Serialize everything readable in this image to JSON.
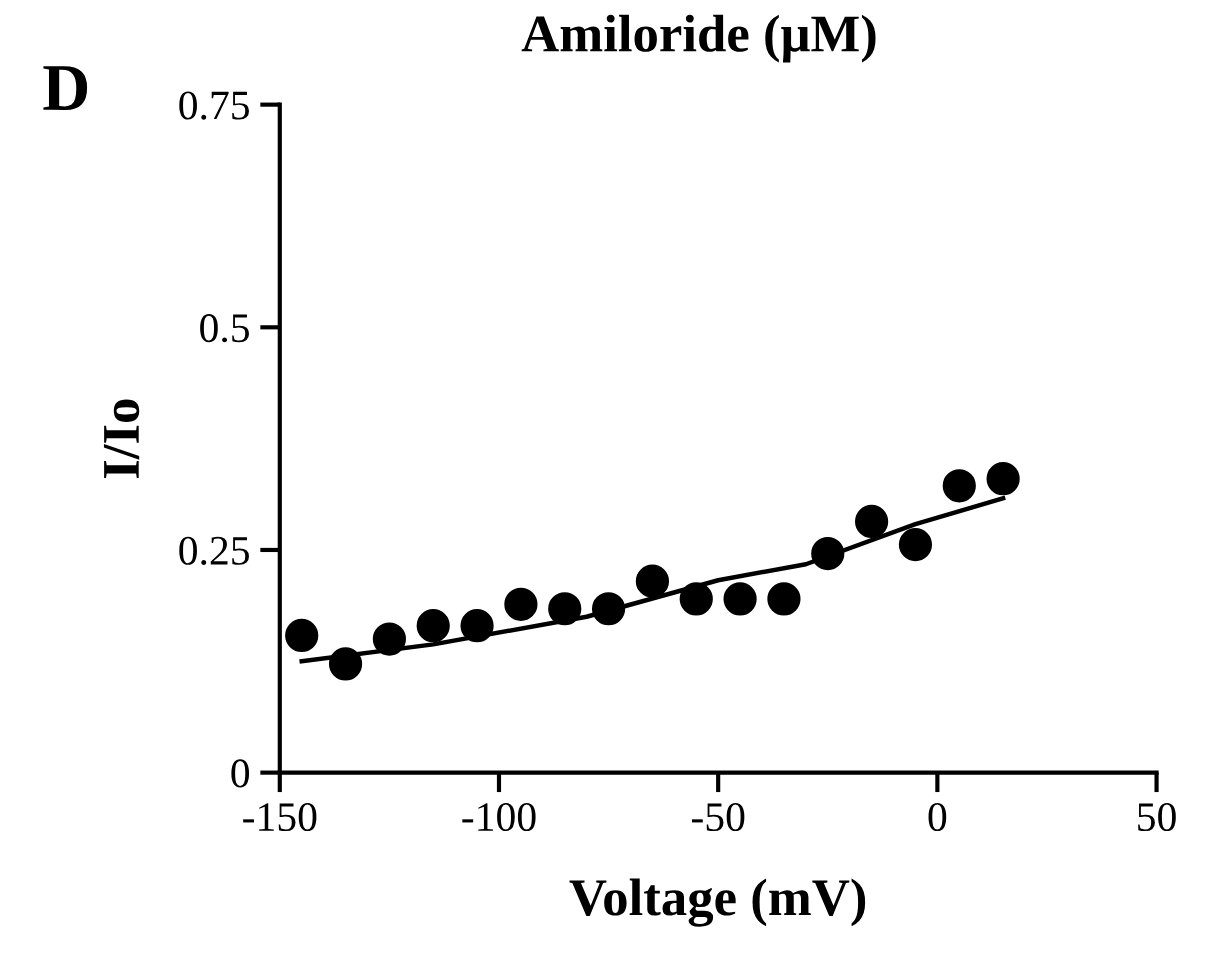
{
  "chart_data": {
    "type": "scatter",
    "title": "Amiloride (μM)",
    "xlabel": "Voltage (mV)",
    "ylabel": "I/Io",
    "annotations": [
      "D"
    ],
    "xlim": [
      -150,
      50
    ],
    "xticks": [
      -150,
      -100,
      -50,
      0,
      50
    ],
    "ylim": [
      0,
      0.75
    ],
    "yticks": [
      0,
      0.25,
      0.5,
      0.75
    ],
    "grid": false,
    "legend": false,
    "x": [
      -145,
      -135,
      -125,
      -115,
      -105,
      -95,
      -85,
      -75,
      -65,
      -55,
      -45,
      -35,
      -25,
      -15,
      -5,
      5,
      15
    ],
    "series": [
      {
        "type": "scatter",
        "marker": "circle",
        "color": "#000000",
        "values": [
          0.154,
          0.122,
          0.15,
          0.165,
          0.165,
          0.189,
          0.184,
          0.184,
          0.215,
          0.195,
          0.195,
          0.195,
          0.246,
          0.282,
          0.256,
          0.322,
          0.33
        ]
      },
      {
        "type": "line",
        "color": "#000000",
        "x": [
          -145,
          -115,
          -80,
          -50,
          -30,
          -5,
          15
        ],
        "values": [
          0.125,
          0.144,
          0.175,
          0.216,
          0.234,
          0.279,
          0.308
        ]
      }
    ]
  }
}
